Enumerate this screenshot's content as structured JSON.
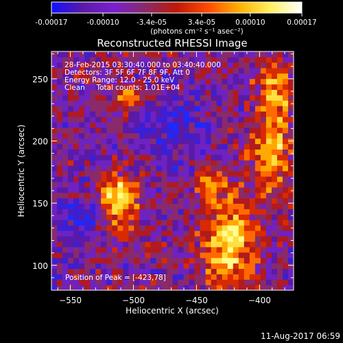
{
  "colorbar": {
    "tick_labels": [
      "-0.00017",
      "-0.00010",
      "-3.4e-05",
      "3.4e-05",
      "0.00010",
      "0.00017"
    ],
    "tick_values": [
      -0.00017,
      -0.0001,
      -3.4e-05,
      3.4e-05,
      0.0001,
      0.00017
    ],
    "range": [
      -0.00017,
      0.00017
    ],
    "unit_label": "(photons cm⁻² s⁻¹ asec⁻²)",
    "colors": [
      "#1010ff",
      "#5a1aa8",
      "#7a1fd0",
      "#8a2a6a",
      "#c01808",
      "#ff4a00",
      "#ffb000",
      "#fff060",
      "#ffffff"
    ]
  },
  "plot": {
    "title": "Reconstructed RHESSI Image",
    "info_lines": [
      "28-Feb-2015 03:30:40.000 to 03:40:40.000",
      "Detectors: 3F 5F 6F 7F 8F 9F, Att 0",
      "Energy Range: 12.0 - 25.0 keV",
      "Clean     Total counts: 1.01E+04"
    ],
    "peak_label": "Position of Peak = [-423,78]",
    "background": "#000000",
    "accent_colors": {
      "purple": "#5a1aa8",
      "blue": "#1c2aff",
      "red": "#c01808",
      "orange": "#ff6a00",
      "yellow": "#ffe040"
    }
  },
  "footer": {
    "timestamp": "11-Aug-2017 06:59"
  },
  "chart_data": {
    "type": "heatmap",
    "title": "Reconstructed RHESSI Image",
    "xlabel": "Heliocentric X (arcsec)",
    "ylabel": "Heliocentric Y (arcsec)",
    "xlim": [
      -565,
      -373
    ],
    "ylim": [
      80,
      272
    ],
    "x_ticks": [
      -550,
      -500,
      -450,
      -400
    ],
    "y_ticks": [
      100,
      150,
      200,
      250
    ],
    "x_tick_labels": [
      "−550",
      "−500",
      "−450",
      "−400"
    ],
    "y_tick_labels": [
      "100",
      "150",
      "200",
      "250"
    ],
    "peak_position": [
      -423,
      78
    ],
    "bright_regions": [
      {
        "center": [
          -512,
          152
        ],
        "description": "bright blob"
      },
      {
        "center": [
          -505,
          235
        ],
        "description": "bright blob"
      },
      {
        "center": [
          -425,
          118
        ],
        "description": "extended bright band"
      },
      {
        "center": [
          -395,
          190
        ],
        "description": "bright patch"
      }
    ]
  }
}
